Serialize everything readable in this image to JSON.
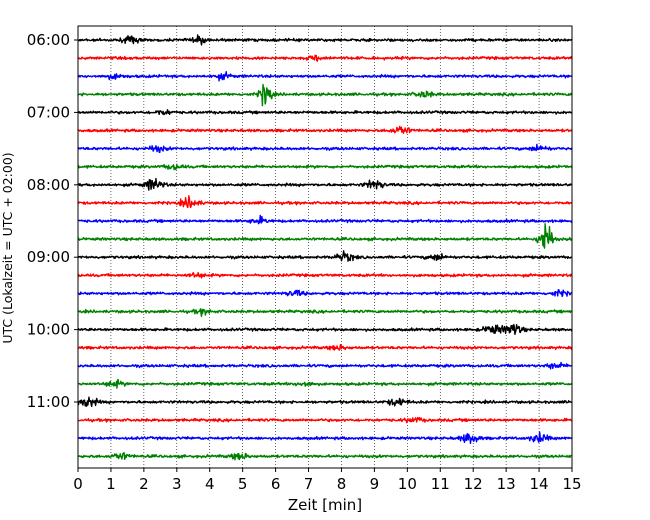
{
  "chart_data": {
    "type": "line",
    "title": "",
    "xlabel": "Zeit  [min]",
    "ylabel": "UTC (Lokalzeit = UTC + 02:00)",
    "xlim": [
      0,
      15
    ],
    "x_ticks": [
      "0",
      "1",
      "2",
      "3",
      "4",
      "5",
      "6",
      "7",
      "8",
      "9",
      "10",
      "11",
      "12",
      "13",
      "14",
      "15"
    ],
    "y_ticks": [
      "06:00",
      "07:00",
      "08:00",
      "09:00",
      "10:00",
      "11:00"
    ],
    "grid": "vertical dotted lines at each minute",
    "trace_minutes": 15,
    "trace_colors": [
      "#000000",
      "#ff0000",
      "#0000ff",
      "#008000"
    ],
    "traces": [
      {
        "start": "06:00",
        "events": [
          {
            "t": 1.6,
            "amp": 0.45
          },
          {
            "t": 3.7,
            "amp": 0.4
          }
        ]
      },
      {
        "start": "06:15",
        "events": [
          {
            "t": 7.3,
            "amp": 0.35
          }
        ]
      },
      {
        "start": "06:30",
        "events": [
          {
            "t": 1.1,
            "amp": 0.3
          },
          {
            "t": 4.4,
            "amp": 0.35
          }
        ]
      },
      {
        "start": "06:45",
        "events": [
          {
            "t": 5.7,
            "amp": 1.6
          },
          {
            "t": 10.5,
            "amp": 0.4
          }
        ]
      },
      {
        "start": "07:00",
        "events": [
          {
            "t": 2.6,
            "amp": 0.3
          }
        ]
      },
      {
        "start": "07:15",
        "events": [
          {
            "t": 9.8,
            "amp": 0.6
          }
        ]
      },
      {
        "start": "07:30",
        "events": [
          {
            "t": 2.4,
            "amp": 0.35
          },
          {
            "t": 14.0,
            "amp": 0.4
          }
        ]
      },
      {
        "start": "07:45",
        "events": [
          {
            "t": 2.9,
            "amp": 0.35
          }
        ]
      },
      {
        "start": "08:00",
        "events": [
          {
            "t": 2.3,
            "amp": 0.8
          },
          {
            "t": 9.0,
            "amp": 0.6
          }
        ]
      },
      {
        "start": "08:15",
        "events": [
          {
            "t": 3.4,
            "amp": 0.7
          }
        ]
      },
      {
        "start": "08:30",
        "events": [
          {
            "t": 5.5,
            "amp": 0.4
          }
        ]
      },
      {
        "start": "08:45",
        "events": [
          {
            "t": 14.2,
            "amp": 2.6
          }
        ]
      },
      {
        "start": "09:00",
        "events": [
          {
            "t": 8.1,
            "amp": 0.6
          },
          {
            "t": 10.9,
            "amp": 0.4
          }
        ]
      },
      {
        "start": "09:15",
        "events": [
          {
            "t": 3.6,
            "amp": 0.3
          }
        ]
      },
      {
        "start": "09:30",
        "events": [
          {
            "t": 6.6,
            "amp": 0.35
          },
          {
            "t": 14.6,
            "amp": 0.35
          }
        ]
      },
      {
        "start": "09:45",
        "events": [
          {
            "t": 3.8,
            "amp": 0.3
          }
        ]
      },
      {
        "start": "10:00",
        "events": [
          {
            "t": 12.6,
            "amp": 0.6
          },
          {
            "t": 13.2,
            "amp": 0.8
          }
        ]
      },
      {
        "start": "10:15",
        "events": [
          {
            "t": 7.9,
            "amp": 0.3
          }
        ]
      },
      {
        "start": "10:30",
        "events": [
          {
            "t": 14.5,
            "amp": 0.35
          }
        ]
      },
      {
        "start": "10:45",
        "events": [
          {
            "t": 1.1,
            "amp": 0.4
          },
          {
            "t": 6.9,
            "amp": 0.3
          }
        ]
      },
      {
        "start": "11:00",
        "events": [
          {
            "t": 0.3,
            "amp": 0.7
          },
          {
            "t": 9.7,
            "amp": 0.5
          }
        ]
      },
      {
        "start": "11:15",
        "events": [
          {
            "t": 10.2,
            "amp": 0.3
          }
        ]
      },
      {
        "start": "11:30",
        "events": [
          {
            "t": 11.9,
            "amp": 0.7
          },
          {
            "t": 14.0,
            "amp": 0.6
          }
        ]
      },
      {
        "start": "11:45",
        "events": [
          {
            "t": 1.3,
            "amp": 0.45
          },
          {
            "t": 4.9,
            "amp": 0.4
          }
        ]
      }
    ]
  }
}
